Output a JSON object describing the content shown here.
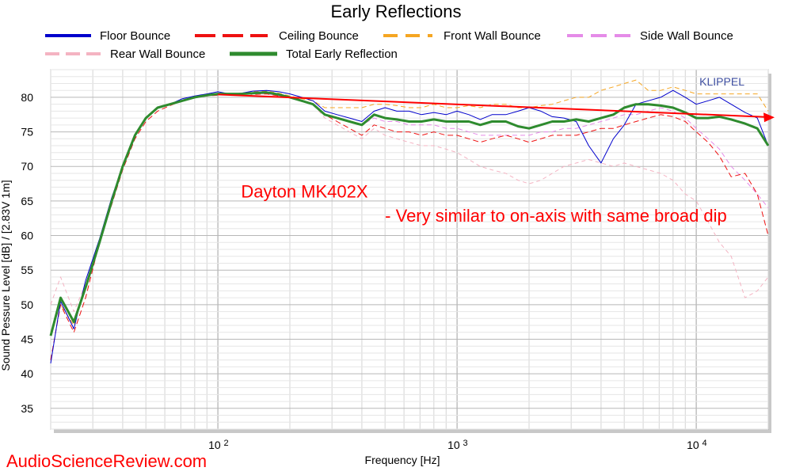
{
  "watermark": "AudioScienceReview.com",
  "klippel_label": "KLIPPEL",
  "colors": {
    "floor": "#0000cc",
    "ceiling": "#ee1111",
    "front": "#f5a623",
    "side": "#e58be8",
    "rear": "#f4b3c2",
    "total": "#2e8b2e",
    "trend": "#ff0000",
    "note": "#ff0000"
  },
  "chart_data": {
    "type": "line",
    "title": "Early Reflections",
    "xlabel": "Frequency [Hz]",
    "ylabel": "Sound Pessure Level [dB]  / [2.83V 1m]",
    "x_scale": "log",
    "xlim": [
      20,
      20000
    ],
    "ylim": [
      32,
      84
    ],
    "yticks": [
      35,
      40,
      45,
      50,
      55,
      60,
      65,
      70,
      75,
      80
    ],
    "xtick_labels": [
      {
        "value": 100,
        "base": "10",
        "exp": "2"
      },
      {
        "value": 1000,
        "base": "10",
        "exp": "3"
      },
      {
        "value": 10000,
        "base": "10",
        "exp": "4"
      }
    ],
    "grid": true,
    "legend": "top, two rows",
    "x": [
      20,
      22,
      25,
      28,
      32,
      36,
      40,
      45,
      50,
      56,
      63,
      71,
      80,
      90,
      100,
      112,
      125,
      140,
      160,
      180,
      200,
      224,
      250,
      280,
      315,
      355,
      400,
      450,
      500,
      560,
      630,
      710,
      800,
      900,
      1000,
      1120,
      1250,
      1400,
      1600,
      1800,
      2000,
      2240,
      2500,
      2800,
      3150,
      3550,
      4000,
      4500,
      5000,
      5600,
      6300,
      7100,
      8000,
      9000,
      10000,
      11200,
      12500,
      14000,
      16000,
      18000,
      20000
    ],
    "series": [
      {
        "name": "Floor Bounce",
        "key": "floor",
        "style": "solid",
        "width": 1,
        "values": [
          41.5,
          50.5,
          46.5,
          53.5,
          59.5,
          65.5,
          70,
          74.5,
          77,
          78.5,
          79,
          79.8,
          80.2,
          80.5,
          80.8,
          80.5,
          80.6,
          80.9,
          81,
          80.8,
          80.5,
          80,
          79.5,
          78,
          77.5,
          77,
          76.5,
          78,
          78.5,
          78,
          78,
          77.5,
          77.8,
          77.5,
          78,
          77.5,
          76.8,
          77.5,
          77.5,
          78,
          78.5,
          78,
          77.2,
          77,
          76.5,
          73,
          70.5,
          74,
          76,
          79,
          79.5,
          80,
          81,
          80,
          79,
          79.5,
          80,
          79,
          77.8,
          77,
          73
        ]
      },
      {
        "name": "Ceiling Bounce",
        "key": "ceiling",
        "style": "dashed",
        "width": 1,
        "values": [
          42,
          50,
          46,
          51,
          59,
          64.5,
          69.5,
          74,
          76.5,
          78,
          78.8,
          79.5,
          80,
          80.2,
          80.3,
          80.5,
          80.6,
          80.4,
          80.5,
          80.2,
          80,
          79.5,
          79,
          77.5,
          76.5,
          75.5,
          74.5,
          76,
          75.5,
          75,
          75,
          74.5,
          75,
          74.5,
          74.5,
          74,
          73.5,
          74,
          74.5,
          74,
          73.5,
          74,
          74.5,
          74.5,
          74.5,
          75,
          75.5,
          75.5,
          76,
          76.5,
          77,
          77.5,
          77.2,
          76.5,
          75,
          73.5,
          71.5,
          68.5,
          69,
          66,
          60
        ]
      },
      {
        "name": "Front Wall Bounce",
        "key": "front",
        "style": "dashed",
        "width": 1,
        "values": [
          46,
          50,
          47,
          52.5,
          59,
          65,
          70,
          74.5,
          77,
          78.5,
          79,
          79.5,
          80,
          80.3,
          80.5,
          80.5,
          80.5,
          80.8,
          80.9,
          80.6,
          80.2,
          79.8,
          79.5,
          78.5,
          78.5,
          78.5,
          78.5,
          79,
          79,
          78.8,
          78.5,
          78.5,
          79,
          78.5,
          78.5,
          78.8,
          78.5,
          79,
          79,
          78.5,
          78.5,
          78.8,
          79,
          79.5,
          80,
          80,
          81,
          81.5,
          82,
          82.5,
          81,
          81,
          81.5,
          81,
          80.5,
          80.5,
          80.5,
          80.5,
          80.5,
          80.5,
          78
        ]
      },
      {
        "name": "Side Wall Bounce",
        "key": "side",
        "style": "dashed",
        "width": 1,
        "values": [
          46,
          50,
          47,
          52.5,
          59,
          65,
          70,
          74.5,
          77,
          78.5,
          79,
          79.5,
          80,
          80.3,
          80.5,
          80.5,
          80.5,
          80.5,
          80.5,
          80.2,
          80,
          79.5,
          79,
          77.5,
          77,
          76.5,
          76,
          77,
          76.5,
          76.5,
          76,
          76,
          76,
          75.5,
          75.5,
          75,
          74.5,
          74.5,
          74.5,
          74.5,
          74.5,
          75,
          75,
          75.5,
          75.5,
          76,
          76.5,
          77,
          77.5,
          77.5,
          78,
          78.5,
          78,
          77,
          75.5,
          74,
          72.5,
          70,
          68,
          66,
          64
        ]
      },
      {
        "name": "Rear Wall Bounce",
        "key": "rear",
        "style": "dashed",
        "width": 1,
        "values": [
          50,
          54,
          49,
          53,
          59,
          65,
          70,
          74.5,
          77,
          78.5,
          79,
          79.5,
          80,
          80.3,
          80.5,
          80.5,
          80.5,
          80.6,
          80.5,
          80.2,
          80,
          79.5,
          79,
          77,
          76,
          75,
          74,
          75.5,
          74.5,
          74,
          73.5,
          73,
          73,
          72.5,
          72,
          71,
          70,
          69.5,
          69,
          68,
          67.5,
          68,
          69,
          70,
          70.5,
          71,
          70.5,
          70,
          70.5,
          70,
          69.5,
          69,
          68,
          66,
          65,
          62,
          59,
          57,
          51,
          52,
          54
        ]
      },
      {
        "name": "Total Early Reflection",
        "key": "total",
        "style": "solid",
        "width": 3,
        "values": [
          45.5,
          51,
          47.5,
          52.5,
          59,
          65,
          70,
          74.5,
          77,
          78.5,
          79,
          79.5,
          80,
          80.3,
          80.5,
          80.5,
          80.5,
          80.6,
          80.7,
          80.4,
          80,
          79.5,
          79,
          77.5,
          77,
          76.5,
          76,
          77.5,
          77,
          76.8,
          76.5,
          76.5,
          76.8,
          76.5,
          76.5,
          76.5,
          76,
          76.5,
          76.5,
          75.8,
          75.5,
          76,
          76.5,
          76.5,
          76.8,
          76.5,
          77,
          77.5,
          78.5,
          79,
          79,
          78.8,
          78.5,
          77.8,
          77,
          77,
          77.2,
          76.8,
          76.2,
          75.5,
          73
        ]
      }
    ],
    "trend_line": {
      "x": [
        100,
        20000
      ],
      "y": [
        80.4,
        77.1
      ]
    },
    "annotations": [
      {
        "text": "Dayton MK402X",
        "x": 125,
        "y": 65.5,
        "size": 22
      },
      {
        "text": "- Very similar to on-axis with same broad dip",
        "x": 500,
        "y": 62,
        "size": 22
      }
    ]
  }
}
